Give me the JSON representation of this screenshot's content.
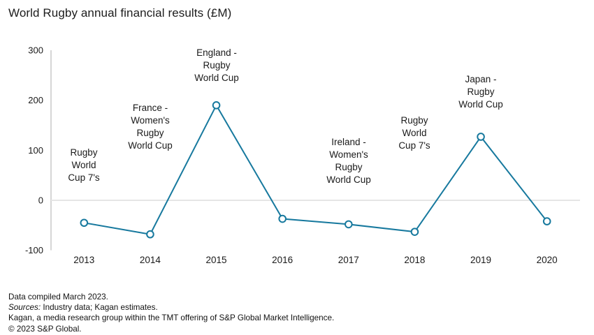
{
  "title": "World Rugby annual financial results (£M)",
  "chart_data": {
    "type": "line",
    "x": [
      "2013",
      "2014",
      "2015",
      "2016",
      "2017",
      "2018",
      "2019",
      "2020"
    ],
    "values": [
      -45,
      -68,
      190,
      -37,
      -48,
      -63,
      127,
      -42
    ],
    "title": "World Rugby annual financial results (£M)",
    "xlabel": "",
    "ylabel": "",
    "ylim": [
      -100,
      300
    ],
    "yticks": [
      300,
      200,
      100,
      0,
      -100
    ],
    "grid": "zero-line-only",
    "legend": "none",
    "series_color": "#17799e",
    "marker_style": "open-circle",
    "annotations": [
      {
        "year": "2013",
        "text": "Rugby\nWorld\nCup 7's"
      },
      {
        "year": "2014",
        "text": "France -\nWomen's\nRugby\nWorld Cup"
      },
      {
        "year": "2015",
        "text": "England -\nRugby\nWorld Cup"
      },
      {
        "year": "2017",
        "text": "Ireland -\nWomen's\nRugby\nWorld Cup"
      },
      {
        "year": "2018",
        "text": "Rugby\nWorld\nCup 7's"
      },
      {
        "year": "2019",
        "text": "Japan -\nRugby\nWorld Cup"
      }
    ]
  },
  "footer": {
    "line1": "Data compiled March 2023.",
    "sources_label": "Sources:",
    "sources_text": " Industry data; Kagan estimates.",
    "line3": "Kagan, a media research group within the TMT offering of S&P Global Market Intelligence.",
    "line4": "© 2023 S&P Global."
  }
}
